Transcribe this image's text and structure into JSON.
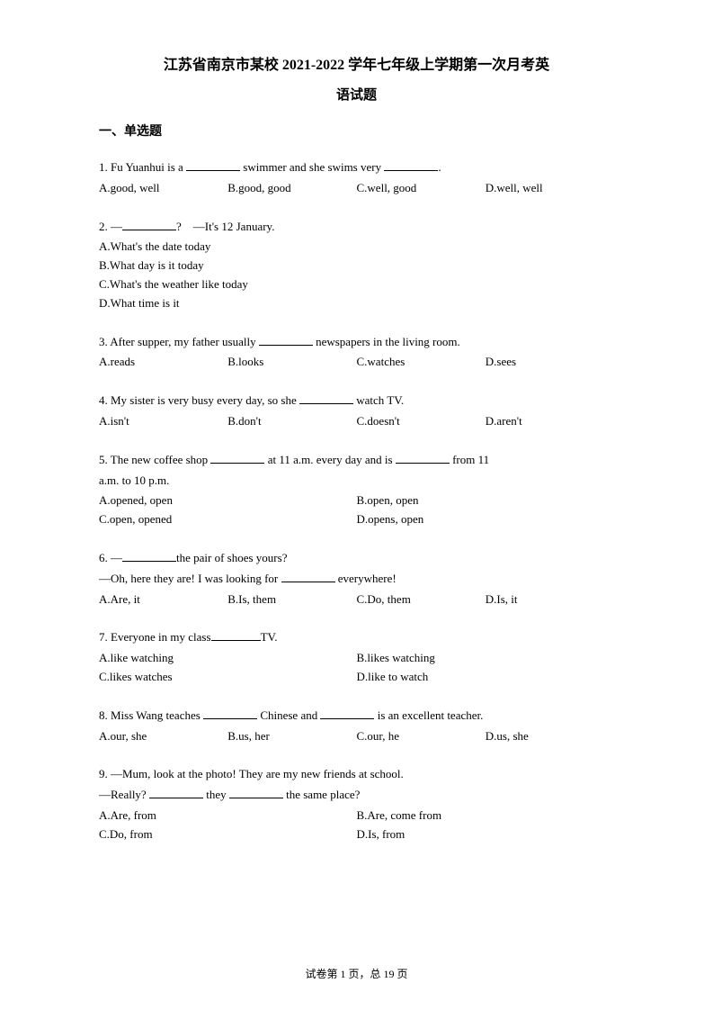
{
  "title": {
    "line1": "江苏省南京市某校 2021-2022 学年七年级上学期第一次月考英",
    "line2": "语试题"
  },
  "section_heading": "一、单选题",
  "questions": [
    {
      "num": "1.",
      "prefix": "  Fu Yuanhui is a ",
      "mid": " swimmer and she swims very ",
      "suffix": ".",
      "opts": [
        "A.good, well",
        "B.good, good",
        "C.well, good",
        "D.well, well"
      ],
      "layout": "4col"
    },
    {
      "num": "2.",
      "prefix": "  —",
      "mid": "?　—It's 12 January.",
      "opts": [
        "A.What's the date today",
        "B.What day is it today",
        "C.What's the weather like today",
        "D.What time is it"
      ],
      "layout": "1col"
    },
    {
      "num": "3.",
      "prefix": "  After supper, my father usually ",
      "suffix": " newspapers in the living room.",
      "opts": [
        "A.reads",
        "B.looks",
        "C.watches",
        "D.sees"
      ],
      "layout": "4col"
    },
    {
      "num": "4.",
      "prefix": "  My sister is very busy every day, so she ",
      "suffix": " watch TV.",
      "opts": [
        "A.isn't",
        "B.don't",
        "C.doesn't",
        "D.aren't"
      ],
      "layout": "4col"
    },
    {
      "num": "5.",
      "prefix": "  The new coffee shop ",
      "mid": " at 11 a.m. every day and is ",
      "suffix": " from 11",
      "line2": "a.m. to 10 p.m.",
      "opts": [
        "A.opened, open",
        "B.open, open",
        "C.open, opened",
        "D.opens, open"
      ],
      "layout": "2col"
    },
    {
      "num": "6.",
      "prefix": "  —",
      "mid": "the pair of shoes yours?",
      "line2_prefix": "—Oh, here they are! I was looking for ",
      "line2_suffix": " everywhere!",
      "opts": [
        "A.Are, it",
        "B.Is, them",
        "C.Do, them",
        "D.Is, it"
      ],
      "layout": "4col"
    },
    {
      "num": "7.",
      "prefix": "  Everyone in my class",
      "suffix": "TV.",
      "opts": [
        "A.like watching",
        "B.likes watching",
        "C.likes watches",
        "D.like to watch"
      ],
      "layout": "2col"
    },
    {
      "num": "8.",
      "prefix": "  Miss Wang teaches ",
      "mid": " Chinese and ",
      "suffix": " is an excellent teacher.",
      "opts": [
        "A.our, she",
        "B.us, her",
        "C.our, he",
        "D.us, she"
      ],
      "layout": "4col"
    },
    {
      "num": "9.",
      "prefix": "  —Mum, look at the photo! They are my new friends at school.",
      "line2_prefix": "—Really? ",
      "line2_mid": " they ",
      "line2_suffix": " the same place?",
      "opts": [
        "A.Are, from",
        "B.Are, come from",
        "C.Do, from",
        "D.Is, from"
      ],
      "layout": "2col"
    }
  ],
  "footer": {
    "prefix": "试卷第 ",
    "page": "1",
    "mid": " 页，总 ",
    "total": "19",
    "suffix": " 页"
  }
}
